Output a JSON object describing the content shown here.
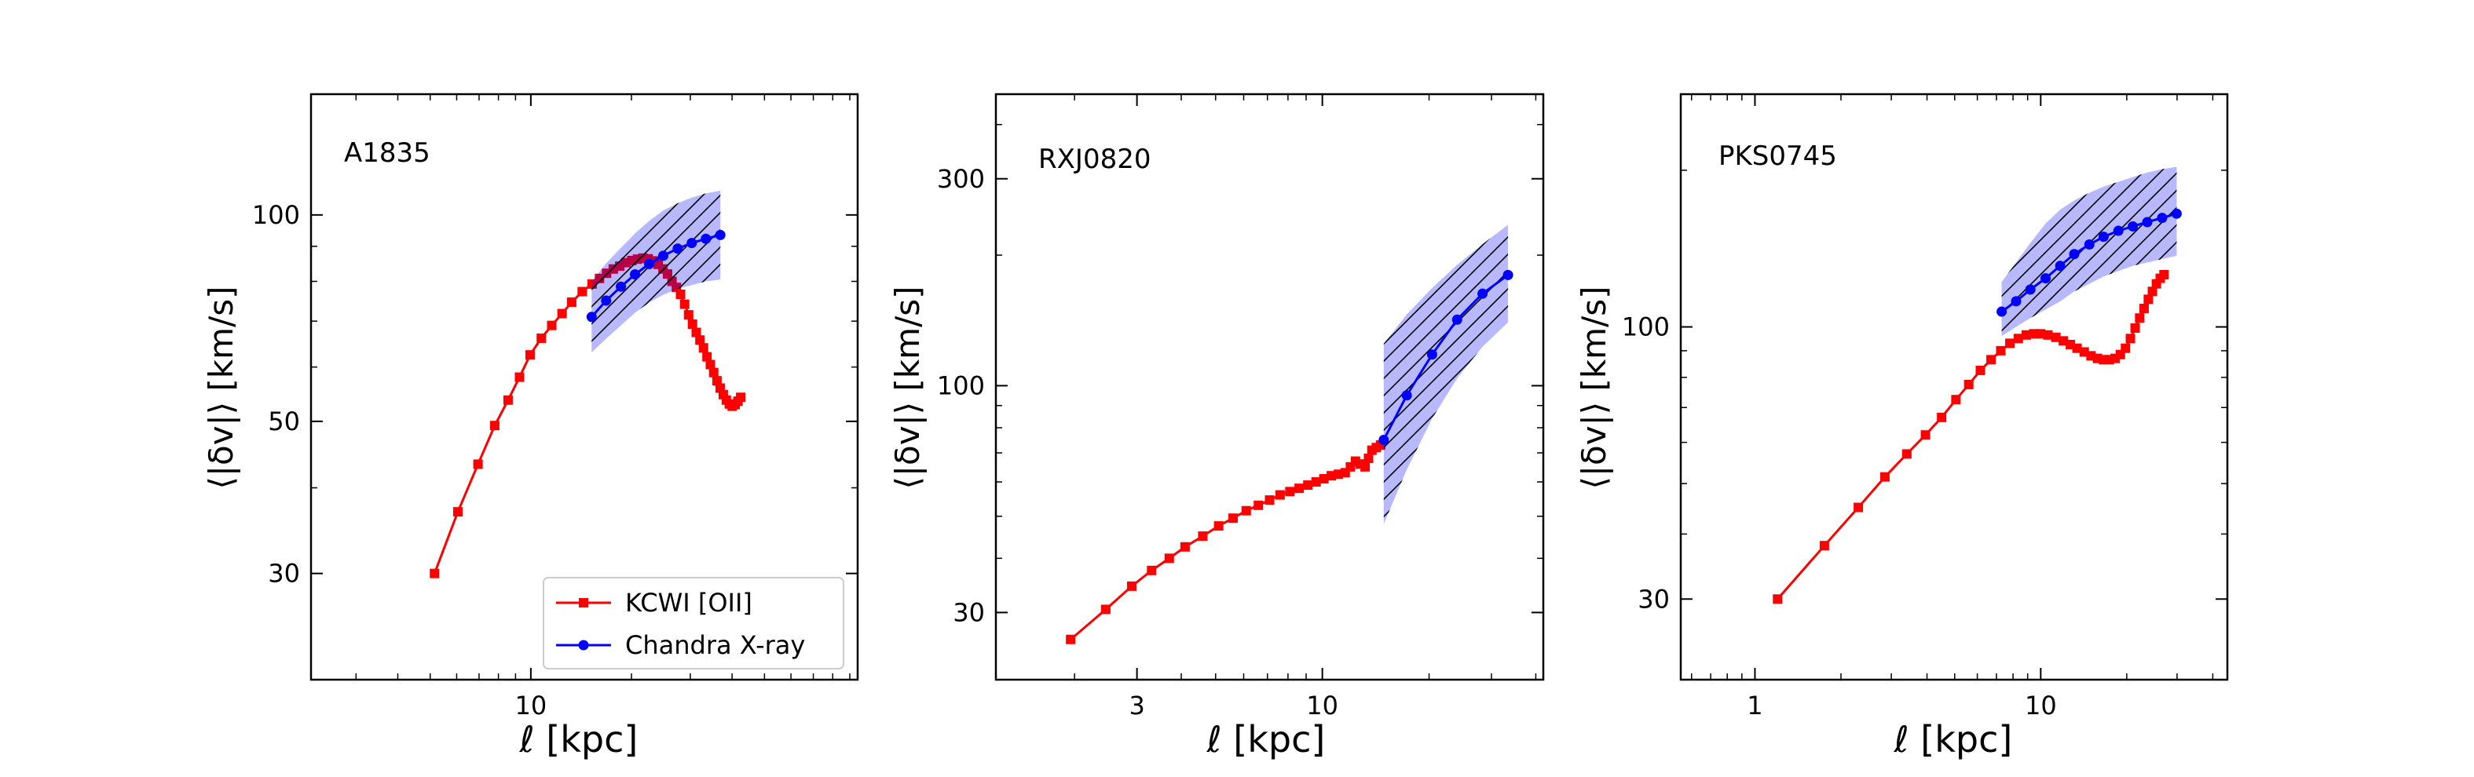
{
  "chart_data": [
    {
      "type": "line",
      "panel_label": "A1835",
      "xlabel": "ℓ [kpc]",
      "ylabel": "⟨|δv|⟩ [km/s]",
      "xscale": "log",
      "yscale": "log",
      "xlim": [
        2.2,
        95
      ],
      "ylim": [
        21,
        150
      ],
      "xticks": [
        {
          "value": 10,
          "label": "10"
        }
      ],
      "yticks": [
        {
          "value": 30,
          "label": "30"
        },
        {
          "value": 50,
          "label": "50"
        },
        {
          "value": 100,
          "label": "100"
        }
      ],
      "legend": {
        "placement": "lower-right",
        "entries": [
          "KCWI [OII]",
          "Chandra X-ray"
        ]
      },
      "series": [
        {
          "name": "KCWI [OII]",
          "color": "#ff0000",
          "marker": "square",
          "x": [
            5.15,
            6.05,
            6.95,
            7.8,
            8.55,
            9.25,
            9.95,
            10.75,
            11.55,
            12.4,
            13.25,
            14.25,
            15.25,
            16.05,
            16.85,
            17.65,
            18.45,
            19.25,
            20.05,
            20.85,
            21.65,
            22.45,
            23.25,
            24.05,
            24.85,
            25.65,
            26.45,
            27.25,
            28.05,
            28.85,
            29.65,
            30.45,
            31.25,
            32.05,
            32.85,
            33.65,
            34.45,
            35.25,
            36.05,
            36.85,
            37.65,
            38.45,
            39.25,
            40.05,
            40.85,
            41.65,
            42.45
          ],
          "values": [
            30.0,
            36.9,
            43.3,
            49.3,
            53.7,
            58.0,
            62.5,
            66.1,
            69.0,
            71.8,
            74.6,
            77.3,
            79.3,
            80.8,
            82.2,
            83.4,
            84.2,
            85.2,
            85.8,
            86.2,
            86.5,
            86.3,
            85.7,
            84.7,
            83.4,
            82.0,
            80.0,
            78.4,
            76.6,
            74.1,
            71.5,
            69.3,
            67.4,
            65.7,
            64.0,
            62.1,
            60.5,
            58.9,
            57.3,
            55.9,
            54.7,
            53.7,
            53.0,
            52.6,
            52.9,
            53.5,
            54.2
          ]
        },
        {
          "name": "Chandra X-ray",
          "color": "#0000ff",
          "marker": "circle",
          "x": [
            15.2,
            16.8,
            18.6,
            20.5,
            22.6,
            24.9,
            27.5,
            30.3,
            33.4,
            36.9
          ],
          "values": [
            71.0,
            75.0,
            78.6,
            81.9,
            84.8,
            87.2,
            89.3,
            91.0,
            92.3,
            93.5
          ],
          "band_upper": [
            80.0,
            85.0,
            89.5,
            94.0,
            98.0,
            101.5,
            104.0,
            106.0,
            107.5,
            108.5
          ],
          "band_lower": [
            63.0,
            66.0,
            69.0,
            72.0,
            74.5,
            76.5,
            78.0,
            79.0,
            80.0,
            80.5
          ]
        }
      ]
    },
    {
      "type": "line",
      "panel_label": "RXJ0820",
      "xlabel": "ℓ [kpc]",
      "ylabel": "⟨|δv|⟩ [km/s]",
      "xscale": "log",
      "yscale": "log",
      "xlim": [
        1.2,
        42
      ],
      "ylim": [
        21,
        470
      ],
      "xticks": [
        {
          "value": 3,
          "label": "3"
        },
        {
          "value": 10,
          "label": "10"
        }
      ],
      "yticks": [
        {
          "value": 30,
          "label": "30"
        },
        {
          "value": 100,
          "label": "100"
        },
        {
          "value": 300,
          "label": "300"
        }
      ],
      "series": [
        {
          "name": "KCWI [OII]",
          "color": "#ff0000",
          "marker": "square",
          "x": [
            1.95,
            2.45,
            2.9,
            3.3,
            3.7,
            4.1,
            4.6,
            5.1,
            5.6,
            6.1,
            6.6,
            7.1,
            7.6,
            8.1,
            8.6,
            9.1,
            9.6,
            10.1,
            10.6,
            11.1,
            11.6,
            12.0,
            12.4,
            12.8,
            13.2,
            13.5,
            13.8,
            14.2,
            14.6
          ],
          "values": [
            26.0,
            30.5,
            34.5,
            37.5,
            40.0,
            42.5,
            45.0,
            47.5,
            49.5,
            51.5,
            53.0,
            54.5,
            56.0,
            57.0,
            58.0,
            59.0,
            60.0,
            61.0,
            62.0,
            62.5,
            63.0,
            65.0,
            67.0,
            66.0,
            65.0,
            68.0,
            71.0,
            72.0,
            73.0
          ]
        },
        {
          "name": "Chandra X-ray",
          "color": "#0000ff",
          "marker": "circle",
          "x": [
            14.9,
            17.3,
            20.4,
            24.0,
            28.3,
            33.4
          ],
          "values": [
            75.0,
            95.0,
            118.0,
            142.0,
            163.0,
            180.0
          ],
          "band_upper": [
            125.0,
            146.0,
            168.0,
            190.0,
            212.0,
            235.0
          ],
          "band_lower": [
            48.0,
            64.0,
            84.0,
            104.0,
            123.0,
            140.0
          ]
        }
      ]
    },
    {
      "type": "line",
      "panel_label": "PKS0745",
      "xlabel": "ℓ [kpc]",
      "ylabel": "⟨|δv|⟩ [km/s]",
      "xscale": "log",
      "yscale": "log",
      "xlim": [
        0.55,
        45
      ],
      "ylim": [
        21,
        280
      ],
      "xticks": [
        {
          "value": 1,
          "label": "1"
        },
        {
          "value": 10,
          "label": "10"
        }
      ],
      "yticks": [
        {
          "value": 30,
          "label": "30"
        },
        {
          "value": 100,
          "label": "100"
        }
      ],
      "series": [
        {
          "name": "KCWI [OII]",
          "color": "#ff0000",
          "marker": "square",
          "x": [
            1.2,
            1.75,
            2.3,
            2.85,
            3.4,
            3.95,
            4.5,
            5.05,
            5.6,
            6.15,
            6.7,
            7.25,
            7.8,
            8.35,
            8.9,
            9.45,
            10.0,
            10.6,
            11.3,
            12.0,
            12.7,
            13.4,
            14.2,
            15.0,
            15.8,
            16.6,
            17.4,
            18.2,
            19.0,
            19.8,
            20.6,
            21.4,
            22.2,
            23.0,
            23.8,
            24.6,
            25.4,
            26.2,
            27.0
          ],
          "values": [
            30.0,
            38.0,
            45.0,
            51.5,
            57.0,
            62.0,
            67.0,
            72.5,
            77.5,
            82.5,
            86.5,
            90.0,
            93.0,
            95.0,
            96.5,
            97.0,
            97.0,
            96.5,
            95.5,
            94.0,
            92.5,
            91.0,
            89.5,
            88.0,
            87.0,
            86.5,
            86.5,
            87.0,
            88.5,
            91.0,
            95.0,
            99.5,
            104.0,
            108.5,
            113.0,
            117.0,
            121.0,
            124.0,
            126.0
          ]
        },
        {
          "name": "Chandra X-ray",
          "color": "#0000ff",
          "marker": "circle",
          "x": [
            7.3,
            8.2,
            9.2,
            10.4,
            11.7,
            13.1,
            14.8,
            16.6,
            18.7,
            21.0,
            23.6,
            26.6,
            29.9
          ],
          "values": [
            107.0,
            112.0,
            118.0,
            124.0,
            131.0,
            138.0,
            144.0,
            149.0,
            153.0,
            156.0,
            159.0,
            162.0,
            165.0
          ],
          "band_upper": [
            122.0,
            133.0,
            145.0,
            158.0,
            168.0,
            175.0,
            181.0,
            186.0,
            190.0,
            194.0,
            198.0,
            201.0,
            203.0
          ],
          "band_lower": [
            96.0,
            100.0,
            104.0,
            108.0,
            112.0,
            117.0,
            121.0,
            125.0,
            128.0,
            131.0,
            133.0,
            135.0,
            137.0
          ]
        }
      ]
    }
  ]
}
